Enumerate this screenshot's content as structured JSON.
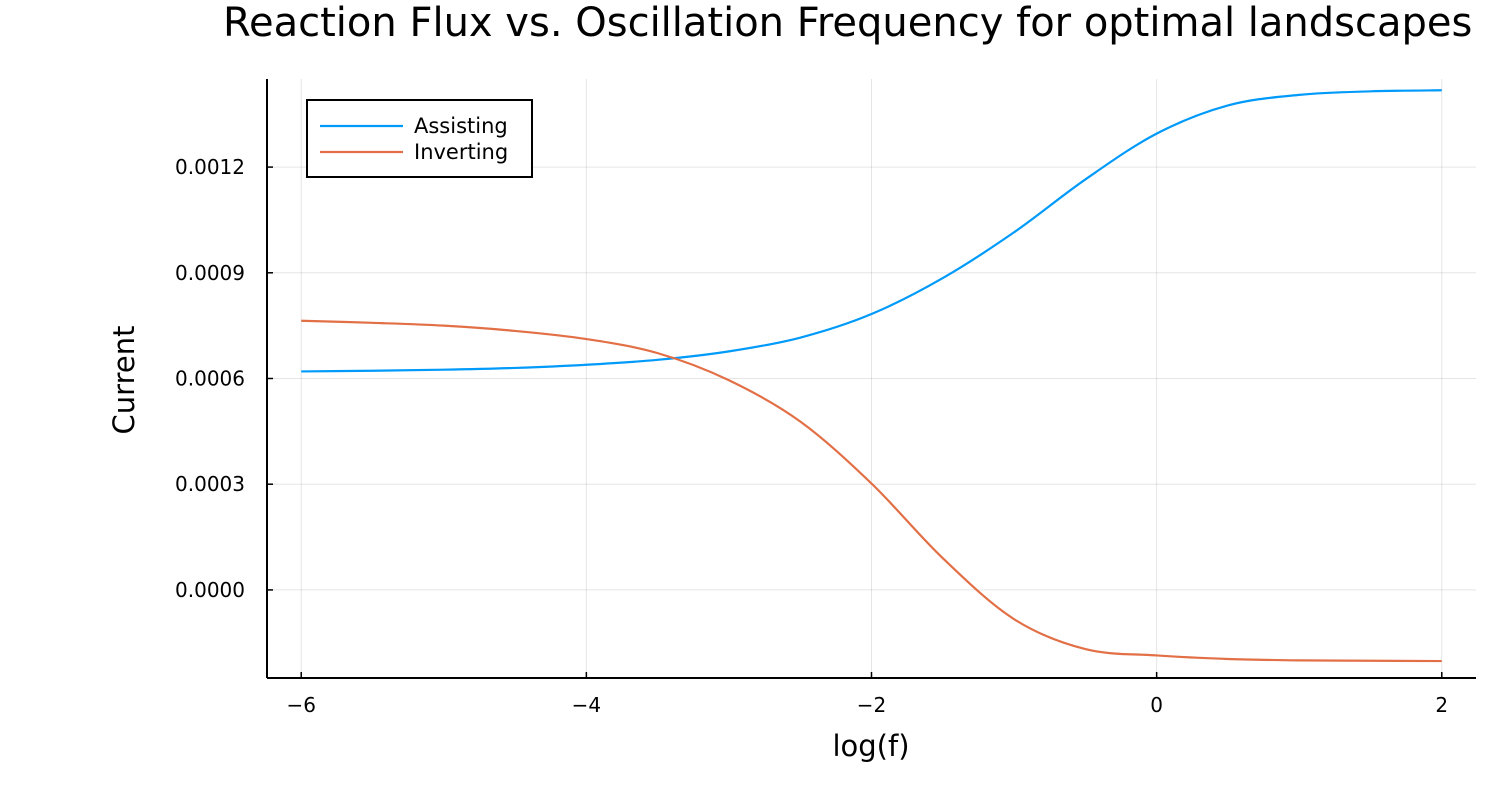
{
  "chart_data": {
    "type": "line",
    "title": "Reaction Flux vs. Oscillation Frequency for optimal landscapes",
    "xlabel": "log(f)",
    "ylabel": "Current",
    "xlim": [
      -6.24,
      2.24
    ],
    "ylim": [
      -0.00025,
      0.00145
    ],
    "xticks": [
      -6,
      -4,
      -2,
      0,
      2
    ],
    "xtick_labels": [
      "−6",
      "−4",
      "−2",
      "0",
      "2"
    ],
    "yticks": [
      0.0,
      0.0003,
      0.0006,
      0.0009,
      0.0012
    ],
    "ytick_labels": [
      "0.0000",
      "0.0003",
      "0.0006",
      "0.0009",
      "0.0012"
    ],
    "grid": true,
    "legend_position": "top-left",
    "x": [
      -6,
      -5.5,
      -5,
      -4.5,
      -4,
      -3.5,
      -3,
      -2.5,
      -2,
      -1.5,
      -1,
      -0.5,
      0,
      0.5,
      1,
      1.5,
      2
    ],
    "series": [
      {
        "name": "Assisting",
        "color": "#009AFA",
        "values": [
          0.00062,
          0.000622,
          0.000625,
          0.00063,
          0.000639,
          0.000653,
          0.000677,
          0.000716,
          0.000783,
          0.000885,
          0.001015,
          0.001165,
          0.001295,
          0.001375,
          0.001405,
          0.001415,
          0.001418
        ]
      },
      {
        "name": "Inverting",
        "color": "#E26F46",
        "values": [
          0.000764,
          0.000758,
          0.00075,
          0.000735,
          0.000712,
          0.000672,
          0.000595,
          0.000478,
          0.000302,
          9e-05,
          -8.3e-05,
          -0.000168,
          -0.000186,
          -0.000196,
          -0.0002,
          -0.000201,
          -0.000202
        ]
      }
    ]
  }
}
